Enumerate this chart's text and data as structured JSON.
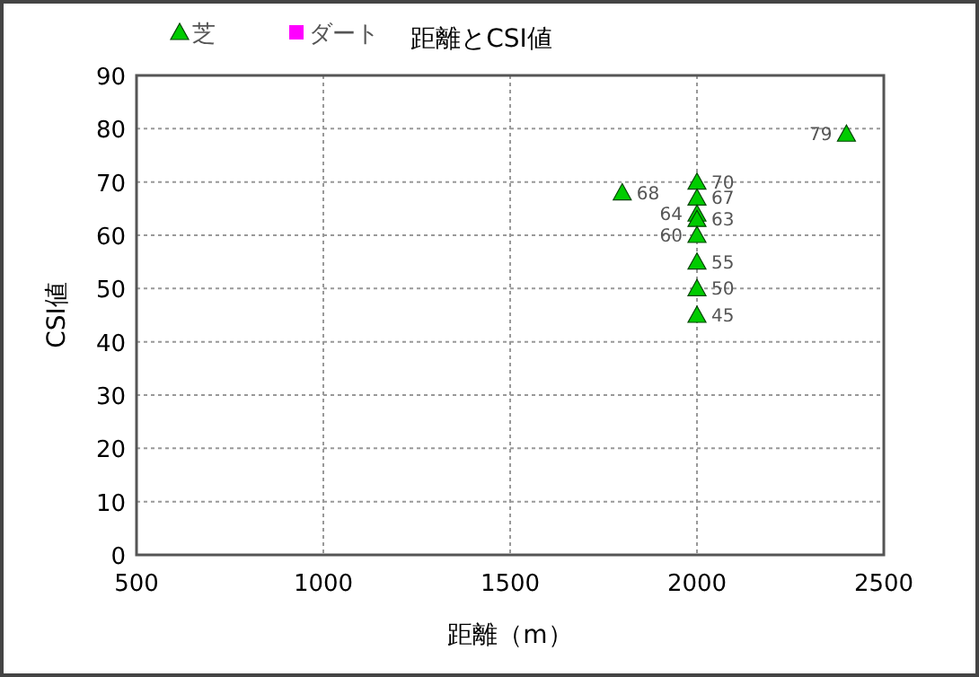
{
  "chart_data": {
    "type": "scatter",
    "title": "距離とCSI値",
    "xlabel": "距離（m）",
    "ylabel": "CSI値",
    "series": [
      {
        "name": "芝",
        "color": "#00cc00",
        "marker": "triangle",
        "x": [
          1800,
          2000,
          2000,
          2000,
          2000,
          2000,
          2000,
          2000,
          2000,
          2400
        ],
        "values": [
          68,
          70,
          67,
          64,
          63,
          60,
          55,
          50,
          45,
          79
        ]
      },
      {
        "name": "ダート",
        "color": "#ff00ff",
        "marker": "square"
      }
    ],
    "xlim": [
      500,
      2500
    ],
    "xticks": [
      500,
      1000,
      1500,
      2000,
      2500
    ],
    "ylim": [
      0,
      90
    ],
    "yticks": [
      0,
      10,
      20,
      30,
      40,
      50,
      60,
      70,
      80,
      90
    ],
    "grid": true,
    "legend": "top left",
    "data_labels": true
  }
}
